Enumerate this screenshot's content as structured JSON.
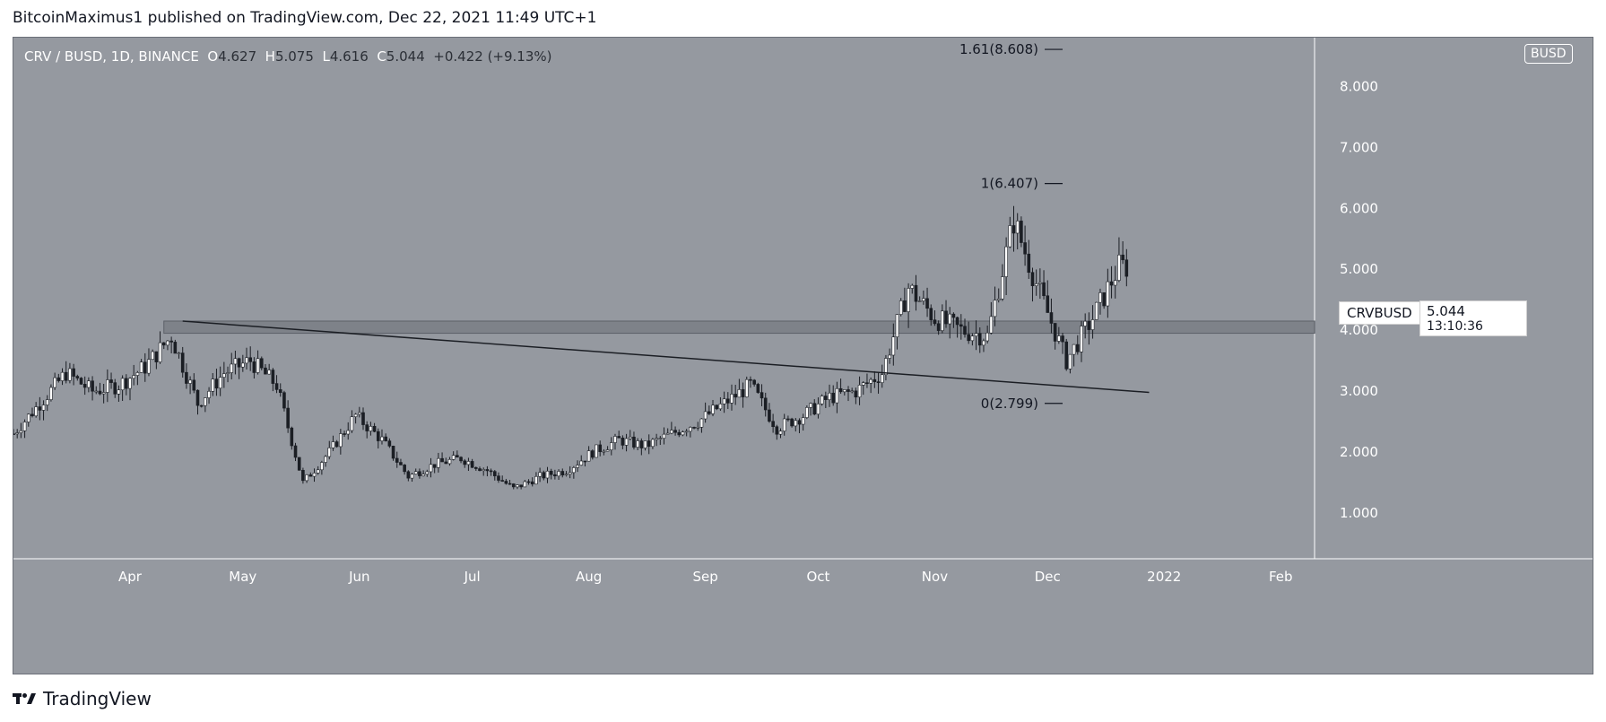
{
  "header": {
    "text": "BitcoinMaximus1 published on TradingView.com, Dec 22, 2021 11:49 UTC+1"
  },
  "symbol": {
    "name": "CRV / BUSD, 1D, BINANCE",
    "o_label": "O",
    "o": "4.627",
    "h_label": "H",
    "h": "5.075",
    "l_label": "L",
    "l": "4.616",
    "c_label": "C",
    "c": "5.044",
    "change": "+0.422 (+9.13%)"
  },
  "currency_badge": "BUSD",
  "last_price": {
    "symbol": "CRVBUSD",
    "price": "5.044",
    "countdown": "13:10:36"
  },
  "footer": {
    "logo": "TradingView"
  },
  "colors": {
    "bg": "#9599a0",
    "candle": "#ffffff",
    "wick": "#1b1e24",
    "zone": "#7e8289"
  },
  "chart_data": {
    "type": "candlestick",
    "x": [
      "2021-03-01",
      "2021-03-08",
      "2021-03-15",
      "2021-03-22",
      "2021-03-29",
      "2021-04-05",
      "2021-04-12",
      "2021-04-19",
      "2021-04-26",
      "2021-05-03",
      "2021-05-10",
      "2021-05-17",
      "2021-05-24",
      "2021-05-31",
      "2021-06-07",
      "2021-06-14",
      "2021-06-21",
      "2021-06-28",
      "2021-07-05",
      "2021-07-12",
      "2021-07-19",
      "2021-07-26",
      "2021-08-02",
      "2021-08-09",
      "2021-08-16",
      "2021-08-23",
      "2021-08-30",
      "2021-09-06",
      "2021-09-13",
      "2021-09-20",
      "2021-09-27",
      "2021-10-04",
      "2021-10-11",
      "2021-10-18",
      "2021-10-25",
      "2021-11-01",
      "2021-11-08",
      "2021-11-15",
      "2021-11-22",
      "2021-11-29",
      "2021-12-06",
      "2021-12-13",
      "2021-12-20"
    ],
    "close": [
      2.3,
      2.8,
      3.3,
      3.0,
      3.1,
      3.4,
      3.9,
      2.8,
      3.3,
      3.5,
      3.1,
      1.5,
      2.0,
      2.6,
      2.2,
      1.6,
      1.8,
      1.9,
      1.7,
      1.4,
      1.6,
      1.7,
      2.0,
      2.2,
      2.1,
      2.3,
      2.5,
      2.8,
      3.1,
      2.4,
      2.6,
      2.9,
      3.0,
      3.3,
      4.7,
      4.2,
      4.0,
      3.9,
      5.8,
      4.6,
      3.5,
      4.2,
      5.044
    ],
    "xticks": [
      "Apr",
      "May",
      "Jun",
      "Jul",
      "Aug",
      "Sep",
      "Oct",
      "Nov",
      "Dec",
      "2022",
      "Feb"
    ],
    "yticks": [
      "1.000",
      "2.000",
      "3.000",
      "4.000",
      "5.000",
      "6.000",
      "7.000",
      "8.000"
    ],
    "ylim": [
      0.25,
      8.8
    ],
    "annotations": {
      "fib": [
        {
          "label": "1.61(8.608)",
          "value": 8.608
        },
        {
          "label": "1(6.407)",
          "value": 6.407
        },
        {
          "label": "0(2.799)",
          "value": 2.799
        }
      ],
      "zone": [
        3.95,
        4.15
      ],
      "trendline": [
        [
          "2021-04-15",
          4.15
        ],
        [
          "2021-12-28",
          2.98
        ]
      ]
    }
  }
}
